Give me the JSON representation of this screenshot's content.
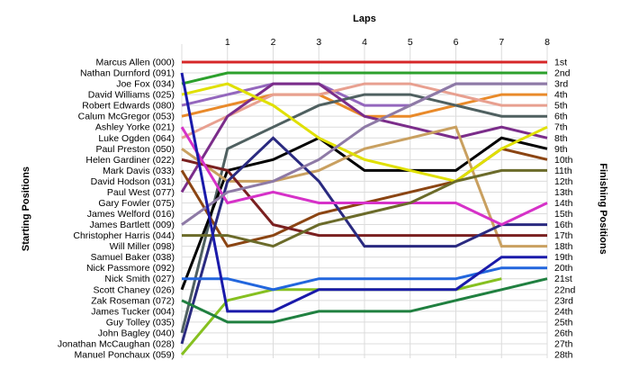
{
  "chart_data": {
    "type": "line",
    "title": "",
    "xlabel": "Laps",
    "ylabel_left": "Starting Positions",
    "ylabel_right": "Finishing Positions",
    "x": [
      0,
      1,
      2,
      3,
      4,
      5,
      6,
      7,
      8
    ],
    "x_tick_labels": [
      "1",
      "2",
      "3",
      "4",
      "5",
      "6",
      "7",
      "8"
    ],
    "y_range": [
      1,
      28
    ],
    "y_inverted": true,
    "grid": true,
    "drivers": [
      "Marcus Allen (000)",
      "Nathan Durnford (091)",
      "Joe Fox (034)",
      "David Williams (025)",
      "Robert Edwards (080)",
      "Calum McGregor (053)",
      "Ashley Yorke (021)",
      "Luke Ogden (064)",
      "Paul Preston (050)",
      "Helen Gardiner (022)",
      "Mark Davis (033)",
      "David Hodson (031)",
      "Paul West (077)",
      "Gary Fowler (075)",
      "James Welford (016)",
      "James Bartlett (009)",
      "Christopher Harris (044)",
      "Will Miller (098)",
      "Samuel Baker (038)",
      "Nick Passmore (092)",
      "Nick Smith (027)",
      "Scott Chaney (026)",
      "Zak Roseman (072)",
      "James Tucker (004)",
      "Guy Tolley (035)",
      "John Bagley (040)",
      "Jonathan McCaughan (028)",
      "Manuel Ponchaux (059)"
    ],
    "finishing_labels": [
      "1st",
      "2nd",
      "3rd",
      "4th",
      "5th",
      "6th",
      "7th",
      "8th",
      "9th",
      "10th",
      "11th",
      "12th",
      "13th",
      "14th",
      "15th",
      "16th",
      "17th",
      "18th",
      "19th",
      "20th",
      "21st",
      "22nd",
      "23rd",
      "24th",
      "25th",
      "26th",
      "27th",
      "28th"
    ],
    "series": [
      {
        "color": "#d62728",
        "values": [
          1,
          1,
          1,
          1,
          1,
          1,
          1,
          1,
          1
        ]
      },
      {
        "color": "#2ca02c",
        "values": [
          3,
          2,
          2,
          2,
          2,
          2,
          2,
          2,
          2
        ]
      },
      {
        "color": "#9467bd",
        "values": [
          5,
          4,
          3,
          3,
          5,
          5,
          3,
          3,
          3
        ]
      },
      {
        "color": "#e98a2a",
        "values": [
          6,
          5,
          4,
          4,
          6,
          6,
          5,
          4,
          4
        ]
      },
      {
        "color": "#e8a090",
        "values": [
          8,
          6,
          4,
          4,
          3,
          3,
          4,
          5,
          5
        ]
      },
      {
        "color": "#4f6060",
        "values": [
          26,
          9,
          7,
          5,
          4,
          4,
          5,
          6,
          6
        ]
      },
      {
        "color": "#7b2d8a",
        "values": [
          13,
          6,
          3,
          3,
          6,
          7,
          8,
          7,
          8
        ]
      },
      {
        "color": "#000000",
        "values": [
          22,
          11,
          10,
          8,
          11,
          11,
          11,
          8,
          9
        ]
      },
      {
        "color": "#c9a060",
        "values": [
          9,
          12,
          12,
          11,
          9,
          8,
          7,
          18,
          18
        ]
      },
      {
        "color": "#8b4513",
        "values": [
          11,
          18,
          17,
          15,
          14,
          13,
          12,
          9,
          10
        ]
      },
      {
        "color": "#7a2020",
        "values": [
          10,
          11,
          16,
          17,
          17,
          17,
          17,
          17,
          17
        ]
      },
      {
        "color": "#2a2a80",
        "values": [
          27,
          12,
          8,
          12,
          18,
          18,
          18,
          16,
          16
        ]
      },
      {
        "color": "#d632c8",
        "values": [
          7,
          14,
          13,
          14,
          14,
          14,
          14,
          16,
          14
        ]
      },
      {
        "color": "#e0e000",
        "values": [
          4,
          3,
          5,
          8,
          10,
          11,
          12,
          9,
          7
        ]
      },
      {
        "color": "#6b6b2a",
        "values": [
          17,
          17,
          18,
          16,
          15,
          14,
          12,
          11,
          11
        ]
      },
      {
        "color": "#8e7aa6",
        "values": [
          16,
          13,
          12,
          10,
          7,
          5,
          3,
          3,
          3
        ]
      },
      {
        "color": "#86c020",
        "values": [
          28,
          23,
          22,
          22,
          22,
          22,
          22,
          21,
          null
        ]
      },
      {
        "color": "#2266dd",
        "values": [
          21,
          21,
          22,
          21,
          21,
          21,
          21,
          20,
          20
        ]
      },
      {
        "color": "#1a1aaa",
        "values": [
          2,
          24,
          24,
          22,
          22,
          22,
          22,
          19,
          19
        ]
      },
      {
        "color": "#208040",
        "values": [
          23,
          25,
          25,
          24,
          24,
          24,
          23,
          22,
          21
        ]
      }
    ]
  }
}
